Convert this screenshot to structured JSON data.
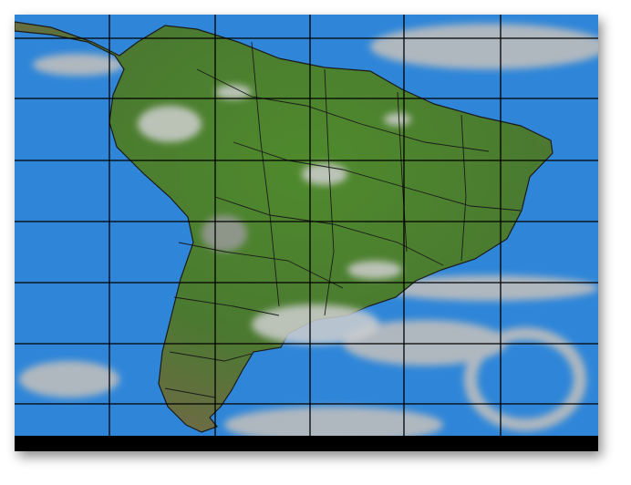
{
  "map": {
    "ocean_color": "#2f86d8",
    "land_color": "#4d7a2e",
    "highland_color": "#8a7a5c",
    "cloud_color": "#c8c8c8",
    "graticule_color": "#000000",
    "border_color": "#1a1a1a"
  }
}
